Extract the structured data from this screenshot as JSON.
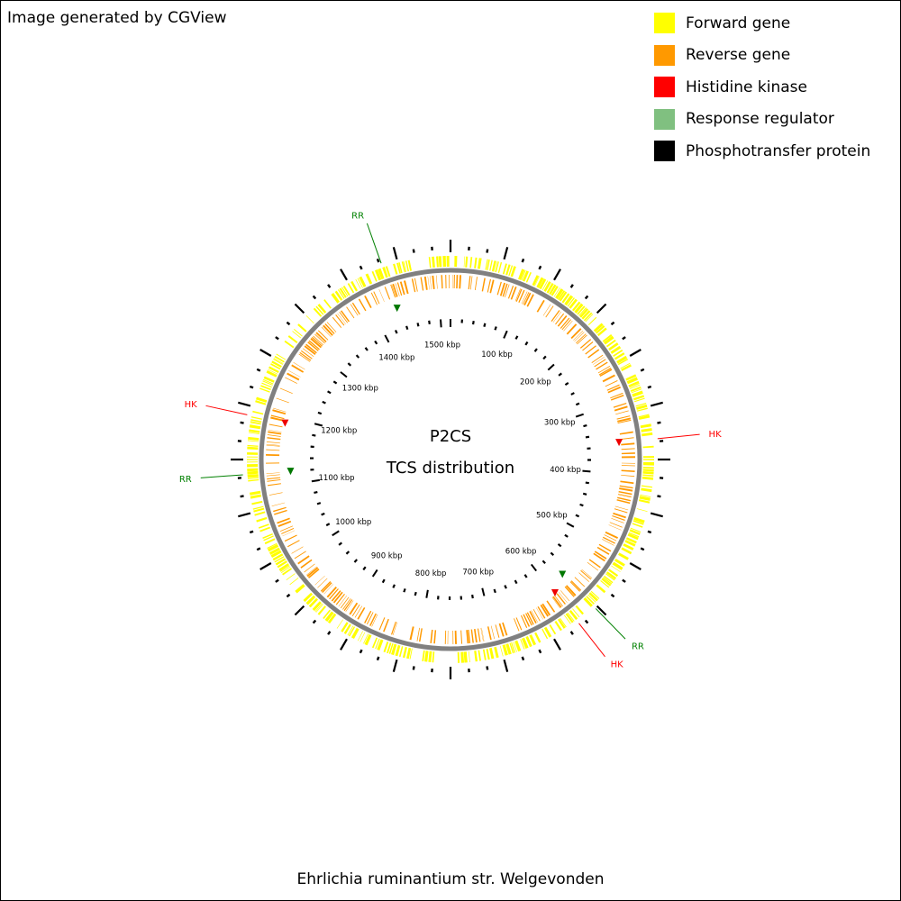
{
  "credit": "Image generated by CGView",
  "organism": "Ehrlichia ruminantium str. Welgevonden",
  "center_label": {
    "line1": "P2CS",
    "line2": "TCS distribution"
  },
  "legend": [
    {
      "label": "Forward gene",
      "color": "#FFFF00"
    },
    {
      "label": "Reverse gene",
      "color": "#FF9900"
    },
    {
      "label": "Histidine kinase",
      "color": "#FF0000"
    },
    {
      "label": "Response regulator",
      "color": "#80C080"
    },
    {
      "label": "Phosphotransfer protein",
      "color": "#000000"
    }
  ],
  "colors": {
    "forward": "#FFFF00",
    "reverse": "#FF9900",
    "backbone": "#808080",
    "hk_label": "#FF0000",
    "rr_label": "#008000",
    "hk_marker": "#EE0000",
    "rr_marker": "#007700",
    "ticks": "#000000"
  },
  "genome": {
    "length_kbp": 1517,
    "tick_labels_kbp": [
      100,
      200,
      300,
      400,
      500,
      600,
      700,
      800,
      900,
      1000,
      1100,
      1200,
      1300,
      1400,
      1500
    ],
    "tick_label_suffix": " kbp"
  },
  "features": [
    {
      "type": "HK",
      "label": "HK",
      "position_kbp": 355
    },
    {
      "type": "HK",
      "label": "HK",
      "position_kbp": 598
    },
    {
      "type": "HK",
      "label": "HK",
      "position_kbp": 1190
    },
    {
      "type": "RR",
      "label": "RR",
      "position_kbp": 1435
    },
    {
      "type": "RR",
      "label": "RR",
      "position_kbp": 1120
    },
    {
      "type": "RR",
      "label": "RR",
      "position_kbp": 572
    }
  ]
}
